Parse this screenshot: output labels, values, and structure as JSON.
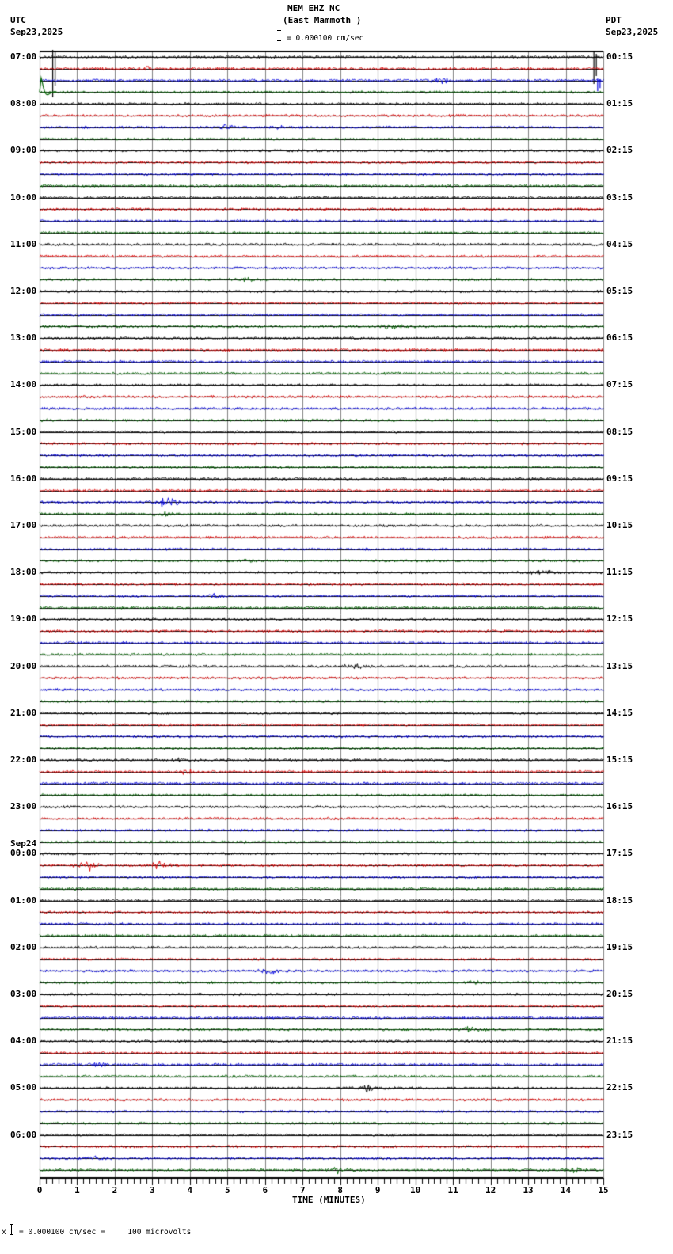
{
  "header": {
    "station": "MEM EHZ NC",
    "location": "(East Mammoth )",
    "left_tz": "UTC",
    "left_date": "Sep23,2025",
    "right_tz": "PDT",
    "right_date": "Sep23,2025",
    "scale_text": "= 0.000100 cm/sec"
  },
  "footer": {
    "scale_prefix": "x",
    "scale_text": "= 0.000100 cm/sec =     100 microvolts"
  },
  "chart_data": {
    "type": "line",
    "title": "MEM EHZ NC (East Mammoth )",
    "xlabel": "TIME (MINUTES)",
    "ylabel": "",
    "xlim": [
      0,
      15
    ],
    "x_ticks": [
      "0",
      "1",
      "2",
      "3",
      "4",
      "5",
      "6",
      "7",
      "8",
      "9",
      "10",
      "11",
      "12",
      "13",
      "14",
      "15"
    ],
    "minor_tick_interval_min": 0.1667,
    "grid": true,
    "trace_colors": [
      "#000000",
      "#e00000",
      "#0000e0",
      "#006400"
    ],
    "traces_per_hour": 4,
    "trace_duration_min": 15,
    "total_traces": 96,
    "scale": "0.000100 cm/sec = 100 microvolts",
    "left_labels": [
      {
        "row": 0,
        "text": "07:00"
      },
      {
        "row": 4,
        "text": "08:00"
      },
      {
        "row": 8,
        "text": "09:00"
      },
      {
        "row": 12,
        "text": "10:00"
      },
      {
        "row": 16,
        "text": "11:00"
      },
      {
        "row": 20,
        "text": "12:00"
      },
      {
        "row": 24,
        "text": "13:00"
      },
      {
        "row": 28,
        "text": "14:00"
      },
      {
        "row": 32,
        "text": "15:00"
      },
      {
        "row": 36,
        "text": "16:00"
      },
      {
        "row": 40,
        "text": "17:00"
      },
      {
        "row": 44,
        "text": "18:00"
      },
      {
        "row": 48,
        "text": "19:00"
      },
      {
        "row": 52,
        "text": "20:00"
      },
      {
        "row": 56,
        "text": "21:00"
      },
      {
        "row": 60,
        "text": "22:00"
      },
      {
        "row": 64,
        "text": "23:00"
      },
      {
        "row": 68,
        "text": "Sep24\n00:00"
      },
      {
        "row": 72,
        "text": "01:00"
      },
      {
        "row": 76,
        "text": "02:00"
      },
      {
        "row": 80,
        "text": "03:00"
      },
      {
        "row": 84,
        "text": "04:00"
      },
      {
        "row": 88,
        "text": "05:00"
      },
      {
        "row": 92,
        "text": "06:00"
      }
    ],
    "right_labels": [
      {
        "row": 0,
        "text": "00:15"
      },
      {
        "row": 4,
        "text": "01:15"
      },
      {
        "row": 8,
        "text": "02:15"
      },
      {
        "row": 12,
        "text": "03:15"
      },
      {
        "row": 16,
        "text": "04:15"
      },
      {
        "row": 20,
        "text": "05:15"
      },
      {
        "row": 24,
        "text": "06:15"
      },
      {
        "row": 28,
        "text": "07:15"
      },
      {
        "row": 32,
        "text": "08:15"
      },
      {
        "row": 36,
        "text": "09:15"
      },
      {
        "row": 40,
        "text": "10:15"
      },
      {
        "row": 44,
        "text": "11:15"
      },
      {
        "row": 48,
        "text": "12:15"
      },
      {
        "row": 52,
        "text": "13:15"
      },
      {
        "row": 56,
        "text": "14:15"
      },
      {
        "row": 60,
        "text": "15:15"
      },
      {
        "row": 64,
        "text": "16:15"
      },
      {
        "row": 68,
        "text": "17:15"
      },
      {
        "row": 72,
        "text": "18:15"
      },
      {
        "row": 76,
        "text": "19:15"
      },
      {
        "row": 80,
        "text": "20:15"
      },
      {
        "row": 84,
        "text": "21:15"
      },
      {
        "row": 88,
        "text": "22:15"
      },
      {
        "row": 92,
        "text": "23:15"
      }
    ],
    "events": [
      {
        "row": 0,
        "minute": 0.35,
        "amp": 60,
        "type": "spike",
        "note": "large green/step transient 07:00-07:45"
      },
      {
        "row": 3,
        "minute": 0.05,
        "amp": 18,
        "type": "decay"
      },
      {
        "row": 0,
        "minute": 14.75,
        "amp": 40,
        "type": "spike"
      },
      {
        "row": 2,
        "minute": 14.85,
        "amp": 16,
        "type": "spike"
      },
      {
        "row": 1,
        "minute": 2.8,
        "amp": 4,
        "type": "burst"
      },
      {
        "row": 2,
        "minute": 10.7,
        "amp": 5,
        "type": "burst"
      },
      {
        "row": 6,
        "minute": 4.9,
        "amp": 4,
        "type": "burst"
      },
      {
        "row": 6,
        "minute": 6.4,
        "amp": 4,
        "type": "burst"
      },
      {
        "row": 19,
        "minute": 5.4,
        "amp": 6,
        "type": "burst"
      },
      {
        "row": 23,
        "minute": 9.4,
        "amp": 5,
        "type": "burst"
      },
      {
        "row": 38,
        "minute": 3.35,
        "amp": 12,
        "type": "burst"
      },
      {
        "row": 39,
        "minute": 3.25,
        "amp": 7,
        "type": "burst"
      },
      {
        "row": 43,
        "minute": 5.5,
        "amp": 5,
        "type": "burst"
      },
      {
        "row": 44,
        "minute": 13.4,
        "amp": 5,
        "type": "burst"
      },
      {
        "row": 46,
        "minute": 4.7,
        "amp": 4,
        "type": "burst"
      },
      {
        "row": 52,
        "minute": 8.4,
        "amp": 5,
        "type": "burst"
      },
      {
        "row": 60,
        "minute": 3.8,
        "amp": 5,
        "type": "burst"
      },
      {
        "row": 61,
        "minute": 3.9,
        "amp": 5,
        "type": "burst"
      },
      {
        "row": 69,
        "minute": 1.3,
        "amp": 9,
        "type": "burst"
      },
      {
        "row": 69,
        "minute": 3.2,
        "amp": 8,
        "type": "burst"
      },
      {
        "row": 78,
        "minute": 6.2,
        "amp": 8,
        "type": "burst"
      },
      {
        "row": 79,
        "minute": 11.5,
        "amp": 6,
        "type": "burst"
      },
      {
        "row": 83,
        "minute": 11.5,
        "amp": 7,
        "type": "burst"
      },
      {
        "row": 86,
        "minute": 1.6,
        "amp": 4,
        "type": "burst"
      },
      {
        "row": 88,
        "minute": 8.7,
        "amp": 6,
        "type": "burst"
      },
      {
        "row": 94,
        "minute": 1.5,
        "amp": 5,
        "type": "burst"
      },
      {
        "row": 95,
        "minute": 8.0,
        "amp": 7,
        "type": "burst"
      },
      {
        "row": 95,
        "minute": 14.2,
        "amp": 6,
        "type": "burst"
      }
    ]
  }
}
